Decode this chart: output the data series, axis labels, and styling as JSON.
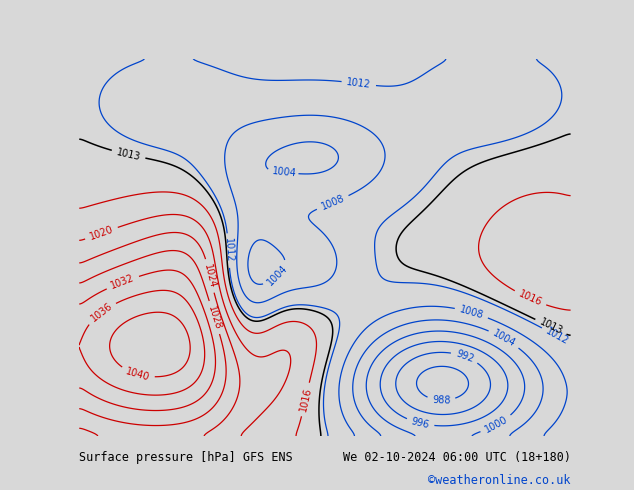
{
  "title_left": "Surface pressure [hPa] GFS ENS",
  "title_right": "We 02-10-2024 06:00 UTC (18+180)",
  "copyright": "©weatheronline.co.uk",
  "bg_color": "#d8d8d8",
  "land_color": "#aad882",
  "ocean_color": "#d8d8d8",
  "contour_red_color": "#cc0000",
  "contour_blue_color": "#0044cc",
  "contour_black_color": "#000000",
  "label_fontsize": 7,
  "footer_fontsize": 8.5,
  "fig_width": 6.34,
  "fig_height": 4.9,
  "dpi": 100,
  "lon_min": -105,
  "lon_max": -10,
  "lat_min": -62,
  "lat_max": 22,
  "pressure_levels_red": [
    1016,
    1020,
    1024,
    1028,
    1032,
    1036,
    1040
  ],
  "pressure_levels_blue": [
    988,
    992,
    996,
    1000,
    1004,
    1008,
    1012
  ],
  "pressure_levels_black": [
    1013
  ]
}
